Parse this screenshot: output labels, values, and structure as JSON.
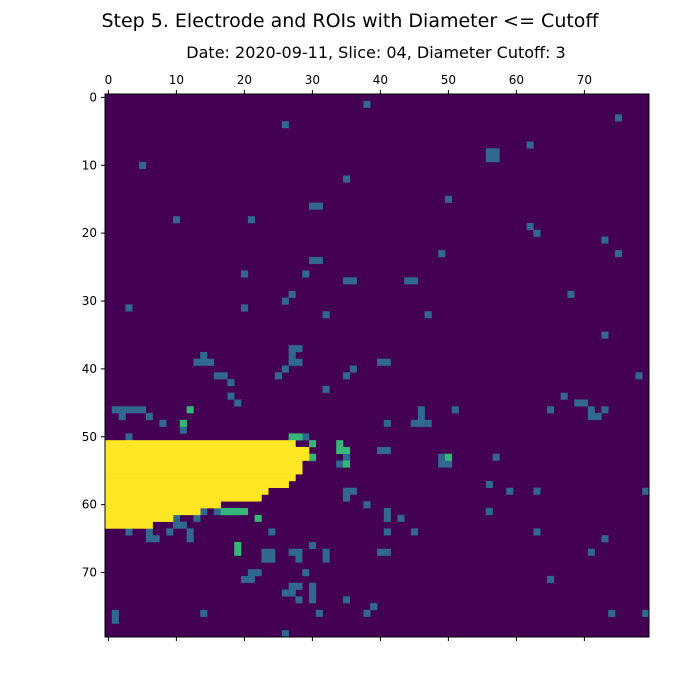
{
  "chart_data": {
    "type": "heatmap",
    "title": "Step 5. Electrode and ROIs with Diameter <= Cutoff",
    "subtitle": "Date: 2020-09-11, Slice: 04, Diameter Cutoff: 3",
    "xlabel": "",
    "ylabel": "",
    "grid": false,
    "colormap": "viridis",
    "xlim": [
      0,
      79
    ],
    "ylim": [
      79,
      0
    ],
    "x_ticks": [
      "0",
      "10",
      "20",
      "30",
      "40",
      "50",
      "60",
      "70"
    ],
    "y_ticks": [
      "0",
      "10",
      "20",
      "30",
      "40",
      "50",
      "60",
      "70"
    ],
    "value_levels": [
      0,
      1,
      2,
      3
    ],
    "level_colors": [
      "#440154",
      "#31688e",
      "#35b779",
      "#fde725"
    ],
    "level_meaning": [
      "background",
      "ROI",
      "ROI adjacent to electrode",
      "electrode"
    ],
    "pixels_roi": [
      [
        38,
        1
      ],
      [
        75,
        3
      ],
      [
        26,
        4
      ],
      [
        62,
        7
      ],
      [
        56,
        8
      ],
      [
        57,
        8
      ],
      [
        56,
        9
      ],
      [
        57,
        9
      ],
      [
        5,
        10
      ],
      [
        35,
        12
      ],
      [
        50,
        15
      ],
      [
        30,
        16
      ],
      [
        31,
        16
      ],
      [
        10,
        18
      ],
      [
        21,
        18
      ],
      [
        62,
        19
      ],
      [
        63,
        20
      ],
      [
        73,
        21
      ],
      [
        49,
        23
      ],
      [
        75,
        23
      ],
      [
        30,
        24
      ],
      [
        31,
        24
      ],
      [
        20,
        26
      ],
      [
        29,
        26
      ],
      [
        35,
        27
      ],
      [
        36,
        27
      ],
      [
        44,
        27
      ],
      [
        45,
        27
      ],
      [
        27,
        29
      ],
      [
        68,
        29
      ],
      [
        26,
        30
      ],
      [
        20,
        31
      ],
      [
        3,
        31
      ],
      [
        47,
        32
      ],
      [
        32,
        32
      ],
      [
        73,
        35
      ],
      [
        27,
        37
      ],
      [
        28,
        37
      ],
      [
        14,
        38
      ],
      [
        27,
        38
      ],
      [
        13,
        39
      ],
      [
        14,
        39
      ],
      [
        15,
        39
      ],
      [
        27,
        39
      ],
      [
        28,
        39
      ],
      [
        40,
        39
      ],
      [
        41,
        39
      ],
      [
        26,
        40
      ],
      [
        36,
        40
      ],
      [
        25,
        41
      ],
      [
        35,
        41
      ],
      [
        16,
        41
      ],
      [
        17,
        41
      ],
      [
        78,
        41
      ],
      [
        18,
        42
      ],
      [
        32,
        43
      ],
      [
        18,
        44
      ],
      [
        67,
        44
      ],
      [
        19,
        45
      ],
      [
        69,
        45
      ],
      [
        70,
        45
      ],
      [
        46,
        46
      ],
      [
        51,
        46
      ],
      [
        65,
        46
      ],
      [
        4,
        46
      ],
      [
        5,
        46
      ],
      [
        1,
        46
      ],
      [
        2,
        46
      ],
      [
        3,
        46
      ],
      [
        71,
        46
      ],
      [
        73,
        46
      ],
      [
        2,
        47
      ],
      [
        6,
        47
      ],
      [
        46,
        47
      ],
      [
        71,
        47
      ],
      [
        72,
        47
      ],
      [
        8,
        48
      ],
      [
        41,
        48
      ],
      [
        45,
        48
      ],
      [
        46,
        48
      ],
      [
        47,
        48
      ],
      [
        11,
        49
      ],
      [
        3,
        50
      ],
      [
        29,
        50
      ],
      [
        40,
        52
      ],
      [
        41,
        52
      ],
      [
        49,
        53
      ],
      [
        49,
        54
      ],
      [
        50,
        54
      ],
      [
        57,
        53
      ],
      [
        35,
        53
      ],
      [
        34,
        54
      ],
      [
        56,
        57
      ],
      [
        35,
        58
      ],
      [
        36,
        58
      ],
      [
        59,
        58
      ],
      [
        63,
        58
      ],
      [
        79,
        58
      ],
      [
        35,
        59
      ],
      [
        38,
        60
      ],
      [
        41,
        61
      ],
      [
        56,
        61
      ],
      [
        14,
        61
      ],
      [
        16,
        61
      ],
      [
        17,
        61
      ],
      [
        18,
        61
      ],
      [
        41,
        62
      ],
      [
        13,
        62
      ],
      [
        10,
        62
      ],
      [
        43,
        62
      ],
      [
        10,
        63
      ],
      [
        11,
        63
      ],
      [
        3,
        64
      ],
      [
        6,
        64
      ],
      [
        9,
        64
      ],
      [
        12,
        64
      ],
      [
        24,
        64
      ],
      [
        41,
        64
      ],
      [
        45,
        64
      ],
      [
        63,
        64
      ],
      [
        6,
        65
      ],
      [
        7,
        65
      ],
      [
        12,
        65
      ],
      [
        73,
        65
      ],
      [
        30,
        66
      ],
      [
        27,
        67
      ],
      [
        28,
        67
      ],
      [
        32,
        67
      ],
      [
        23,
        67
      ],
      [
        24,
        67
      ],
      [
        40,
        67
      ],
      [
        41,
        67
      ],
      [
        71,
        67
      ],
      [
        28,
        68
      ],
      [
        32,
        68
      ],
      [
        23,
        68
      ],
      [
        24,
        68
      ],
      [
        21,
        70
      ],
      [
        22,
        70
      ],
      [
        29,
        70
      ],
      [
        20,
        71
      ],
      [
        21,
        71
      ],
      [
        65,
        71
      ],
      [
        27,
        72
      ],
      [
        28,
        72
      ],
      [
        30,
        72
      ],
      [
        26,
        73
      ],
      [
        27,
        73
      ],
      [
        30,
        73
      ],
      [
        28,
        74
      ],
      [
        30,
        74
      ],
      [
        35,
        74
      ],
      [
        39,
        75
      ],
      [
        1,
        76
      ],
      [
        14,
        76
      ],
      [
        31,
        76
      ],
      [
        38,
        76
      ],
      [
        74,
        76
      ],
      [
        79,
        76
      ],
      [
        1,
        77
      ],
      [
        26,
        79
      ]
    ],
    "pixels_near_electrode": [
      [
        12,
        46
      ],
      [
        11,
        48
      ],
      [
        27,
        50
      ],
      [
        28,
        50
      ],
      [
        30,
        51
      ],
      [
        34,
        51
      ],
      [
        34,
        52
      ],
      [
        35,
        52
      ],
      [
        30,
        53
      ],
      [
        35,
        54
      ],
      [
        50,
        53
      ],
      [
        17,
        61
      ],
      [
        18,
        61
      ],
      [
        19,
        61
      ],
      [
        20,
        61
      ],
      [
        22,
        62
      ],
      [
        19,
        66
      ],
      [
        19,
        67
      ]
    ],
    "electrode_rows": [
      {
        "row": 51,
        "from": 0,
        "to": 27
      },
      {
        "row": 52,
        "from": 0,
        "to": 29
      },
      {
        "row": 53,
        "from": 0,
        "to": 29
      },
      {
        "row": 54,
        "from": 0,
        "to": 28
      },
      {
        "row": 55,
        "from": 0,
        "to": 28
      },
      {
        "row": 56,
        "from": 0,
        "to": 27
      },
      {
        "row": 57,
        "from": 0,
        "to": 26
      },
      {
        "row": 58,
        "from": 0,
        "to": 23
      },
      {
        "row": 59,
        "from": 0,
        "to": 22
      },
      {
        "row": 60,
        "from": 0,
        "to": 16
      },
      {
        "row": 61,
        "from": 0,
        "to": 13
      },
      {
        "row": 62,
        "from": 0,
        "to": 9
      },
      {
        "row": 63,
        "from": 0,
        "to": 6
      }
    ]
  }
}
